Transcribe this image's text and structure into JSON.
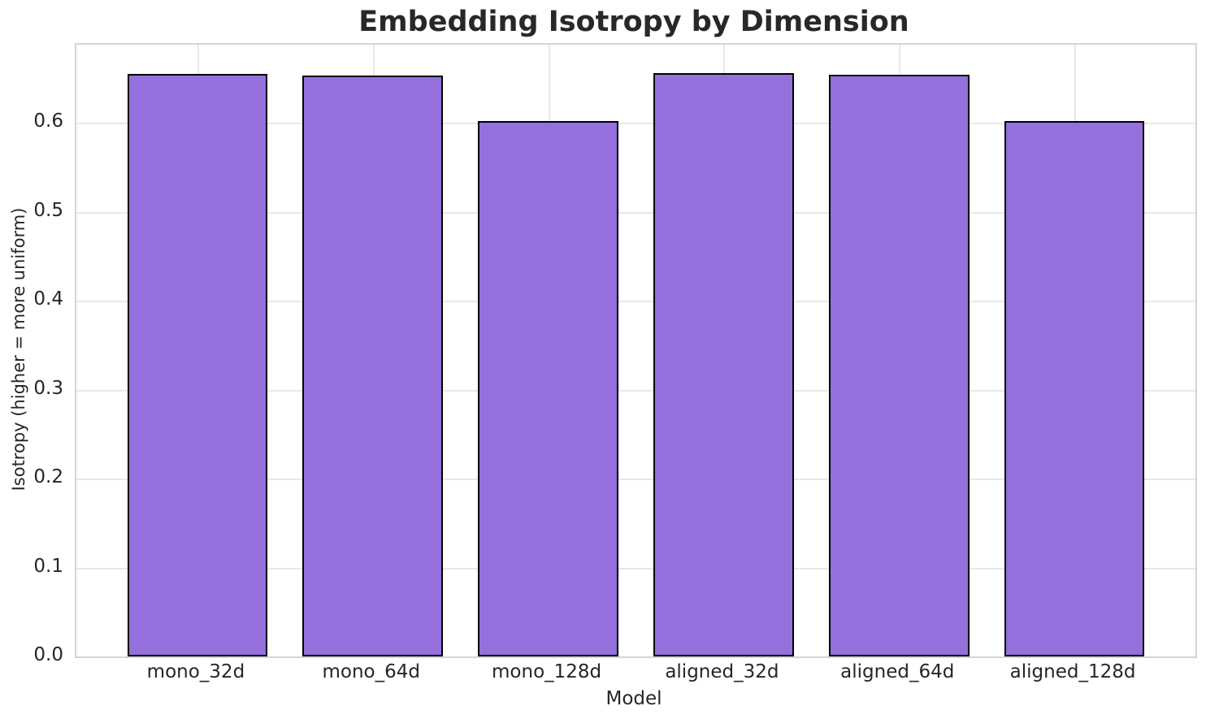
{
  "chart_data": {
    "type": "bar",
    "title": "Embedding Isotropy by Dimension",
    "xlabel": "Model",
    "ylabel": "Isotropy (higher = more uniform)",
    "categories": [
      "mono_32d",
      "mono_64d",
      "mono_128d",
      "aligned_32d",
      "aligned_64d",
      "aligned_128d"
    ],
    "values": [
      0.655,
      0.653,
      0.602,
      0.656,
      0.654,
      0.602
    ],
    "yticks": [
      0.0,
      0.1,
      0.2,
      0.3,
      0.4,
      0.5,
      0.6
    ],
    "ytick_labels": [
      "0.0",
      "0.1",
      "0.2",
      "0.3",
      "0.4",
      "0.5",
      "0.6"
    ],
    "ylim": [
      0,
      0.688
    ],
    "grid": true,
    "legend": false,
    "bar_width_fraction": 0.8,
    "colors": {
      "bar_fill": "#9370DB",
      "bar_edge": "#000000",
      "grid": "#e8e8e8",
      "spine": "#d4d4d4",
      "tick_text": "#262626",
      "title_text": "#282828"
    }
  }
}
